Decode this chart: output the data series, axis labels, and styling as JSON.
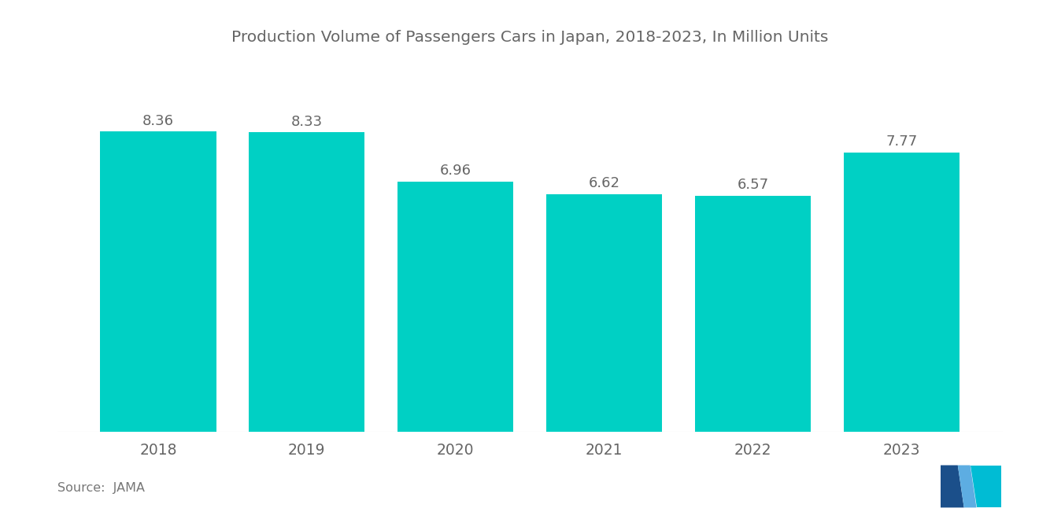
{
  "title": "Production Volume of Passengers Cars in Japan, 2018-2023, In Million Units",
  "categories": [
    "2018",
    "2019",
    "2020",
    "2021",
    "2022",
    "2023"
  ],
  "values": [
    8.36,
    8.33,
    6.96,
    6.62,
    6.57,
    7.77
  ],
  "bar_color": "#00D0C4",
  "background_color": "#ffffff",
  "title_fontsize": 14.5,
  "label_fontsize": 13,
  "tick_fontsize": 13.5,
  "source_text": "Source:  JAMA",
  "ylim": [
    0,
    10.2
  ],
  "bar_width": 0.78,
  "logo_dark_blue": "#1B4F8A",
  "logo_teal": "#00BCD4",
  "logo_light_blue": "#5DADE2"
}
